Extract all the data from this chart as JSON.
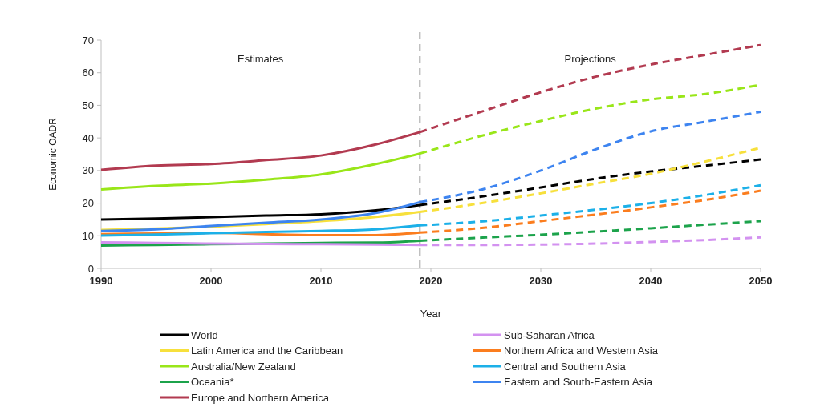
{
  "chart_data": {
    "type": "line",
    "xlabel": "Year",
    "ylabel": "Economic OADR",
    "xlim": [
      1990,
      2050
    ],
    "xticks": [
      1990,
      2000,
      2010,
      2020,
      2030,
      2040,
      2050
    ],
    "ylim": [
      0,
      70
    ],
    "yticks": [
      0,
      10,
      20,
      30,
      40,
      50,
      60,
      70
    ],
    "legend": "bottom",
    "line_style": "solid",
    "ref_lines": [
      {
        "axis": "x",
        "value": 2019,
        "color": "#a6a6a6",
        "line_style": "dashed"
      }
    ],
    "annotations": [
      "Estimates",
      "Projections"
    ],
    "series": [
      {
        "name": "World",
        "color": "#000000",
        "x": [
          1990,
          1995,
          2000,
          2005,
          2010,
          2015,
          2019
        ],
        "values": [
          15,
          15.3,
          15.7,
          16.2,
          16.6,
          17.8,
          19.4
        ]
      },
      {
        "name": "Latin America and the Caribbean",
        "color": "#f7e03c",
        "x": [
          1990,
          1995,
          2000,
          2005,
          2010,
          2015,
          2019
        ],
        "values": [
          11.8,
          12.2,
          12.8,
          13.6,
          14.5,
          15.8,
          17.3
        ]
      },
      {
        "name": "Australia/New Zealand",
        "color": "#99e619",
        "x": [
          1990,
          1995,
          2000,
          2005,
          2010,
          2015,
          2019
        ],
        "values": [
          24.2,
          25.3,
          26,
          27.2,
          28.8,
          32,
          35.2
        ]
      },
      {
        "name": "Oceania*",
        "color": "#1ca34b",
        "x": [
          1990,
          1995,
          2000,
          2005,
          2010,
          2015,
          2019
        ],
        "values": [
          7,
          7.2,
          7.4,
          7.6,
          7.8,
          7.9,
          8.5
        ]
      },
      {
        "name": "Europe and Northern America",
        "color": "#b23a50",
        "x": [
          1990,
          1995,
          2000,
          2005,
          2010,
          2015,
          2019
        ],
        "values": [
          30.2,
          31.5,
          32,
          33.2,
          34.6,
          38,
          41.8
        ]
      },
      {
        "name": "Sub-Saharan Africa",
        "color": "#d392f0",
        "x": [
          1990,
          1995,
          2000,
          2005,
          2010,
          2015,
          2019
        ],
        "values": [
          8,
          7.8,
          7.6,
          7.5,
          7.4,
          7.3,
          7.2
        ]
      },
      {
        "name": "Northern Africa and Western Asia",
        "color": "#fb7d1e",
        "x": [
          1990,
          1995,
          2000,
          2005,
          2010,
          2015,
          2019
        ],
        "values": [
          10.5,
          10.7,
          10.9,
          10.5,
          10.2,
          10.2,
          11
        ]
      },
      {
        "name": "Central and Southern Asia",
        "color": "#1cb0e8",
        "x": [
          1990,
          1995,
          2000,
          2005,
          2010,
          2015,
          2019
        ],
        "values": [
          10.1,
          10.4,
          10.8,
          11.2,
          11.5,
          12,
          13.2
        ]
      },
      {
        "name": "Eastern and South-Eastern Asia",
        "color": "#3d84f0",
        "x": [
          1990,
          1995,
          2000,
          2005,
          2010,
          2015,
          2019
        ],
        "values": [
          11.5,
          12,
          13,
          14,
          15,
          17,
          20.3
        ]
      },
      {
        "color": "#000000",
        "line_style": "dashed",
        "x": [
          2019,
          2025,
          2030,
          2035,
          2040,
          2045,
          2050
        ],
        "values": [
          19.4,
          22.2,
          24.8,
          27.5,
          29.7,
          31.5,
          33.4
        ]
      },
      {
        "color": "#f7e03c",
        "line_style": "dashed",
        "x": [
          2019,
          2025,
          2030,
          2035,
          2040,
          2045,
          2050
        ],
        "values": [
          17.3,
          20.2,
          23,
          26,
          29,
          32.8,
          37
        ]
      },
      {
        "color": "#99e619",
        "line_style": "dashed",
        "x": [
          2019,
          2025,
          2030,
          2035,
          2040,
          2045,
          2050
        ],
        "values": [
          35.2,
          41,
          45.2,
          49,
          51.8,
          53.5,
          56.3
        ]
      },
      {
        "color": "#1ca34b",
        "line_style": "dashed",
        "x": [
          2019,
          2025,
          2030,
          2035,
          2040,
          2045,
          2050
        ],
        "values": [
          8.5,
          9.5,
          10.3,
          11.3,
          12.3,
          13.4,
          14.5
        ]
      },
      {
        "color": "#b23a50",
        "line_style": "dashed",
        "x": [
          2019,
          2025,
          2030,
          2035,
          2040,
          2045,
          2050
        ],
        "values": [
          41.8,
          48.5,
          54,
          58.8,
          62.5,
          65.5,
          68.5
        ]
      },
      {
        "color": "#d392f0",
        "line_style": "dashed",
        "x": [
          2019,
          2025,
          2030,
          2035,
          2040,
          2045,
          2050
        ],
        "values": [
          7.2,
          7.2,
          7.3,
          7.6,
          8.1,
          8.7,
          9.5
        ]
      },
      {
        "color": "#fb7d1e",
        "line_style": "dashed",
        "x": [
          2019,
          2025,
          2030,
          2035,
          2040,
          2045,
          2050
        ],
        "values": [
          11,
          12.5,
          14.5,
          16.5,
          18.7,
          21,
          23.8
        ]
      },
      {
        "color": "#1cb0e8",
        "line_style": "dashed",
        "x": [
          2019,
          2025,
          2030,
          2035,
          2040,
          2045,
          2050
        ],
        "values": [
          13.2,
          14.5,
          16.2,
          18,
          20,
          22.5,
          25.5
        ]
      },
      {
        "color": "#3d84f0",
        "line_style": "dashed",
        "x": [
          2019,
          2025,
          2030,
          2035,
          2040,
          2045,
          2050
        ],
        "values": [
          20.3,
          24.5,
          30,
          36.5,
          42,
          45,
          48
        ]
      }
    ]
  }
}
